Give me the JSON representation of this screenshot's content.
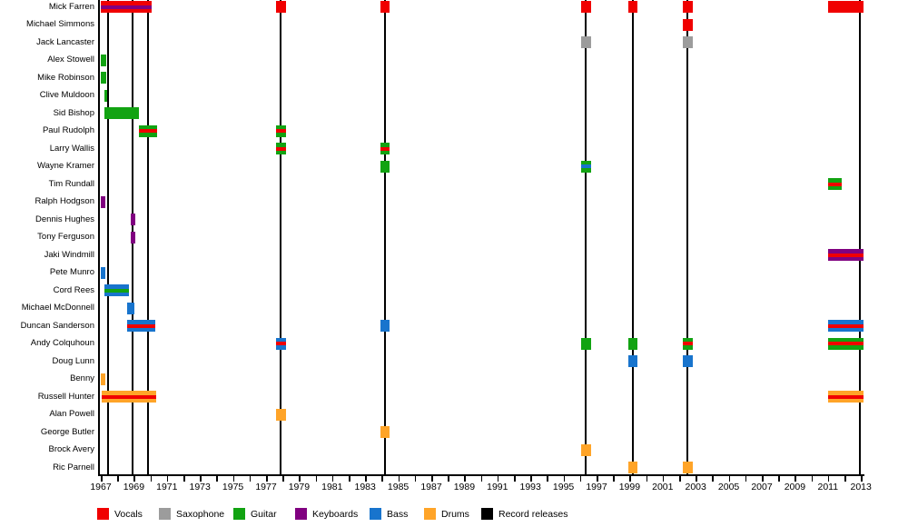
{
  "page": {
    "background": "#ffffff"
  },
  "colors": {
    "vocals": "#f00000",
    "saxophone": "#9c9c9c",
    "guitar": "#12a312",
    "keyboards": "#800080",
    "bass": "#1874cd",
    "drums": "#ffa428",
    "record": "#000000"
  },
  "chart_data": {
    "type": "timeline",
    "title": "",
    "x_axis": {
      "first_year": 1967,
      "last_year": 2013,
      "label_step": 2,
      "minor_tick_step": 1,
      "tick_labels": [
        "1967",
        "1969",
        "1971",
        "1973",
        "1975",
        "1977",
        "1979",
        "1981",
        "1983",
        "1985",
        "1987",
        "1989",
        "1991",
        "1993",
        "1995",
        "1997",
        "1999",
        "2001",
        "2003",
        "2005",
        "2007",
        "2009",
        "2011",
        "2013"
      ]
    },
    "legend": [
      {
        "label": "Vocals",
        "role": "vocals"
      },
      {
        "label": "Saxophone",
        "role": "saxophone"
      },
      {
        "label": "Guitar",
        "role": "guitar"
      },
      {
        "label": "Keyboards",
        "role": "keyboards"
      },
      {
        "label": "Bass",
        "role": "bass"
      },
      {
        "label": "Drums",
        "role": "drums"
      },
      {
        "label": "Record releases",
        "role": "record"
      }
    ],
    "record_release_years": [
      1967.45,
      1968.95,
      1969.85,
      1977.9,
      1984.2,
      1996.35,
      1999.2,
      2002.5,
      2012.95
    ],
    "members": [
      {
        "name": "Mick Farren",
        "bars": [
          {
            "start": 1967.0,
            "end": 1970.1,
            "role": "vocals",
            "stripe": "keyboards"
          },
          {
            "start": 1977.6,
            "end": 1978.2,
            "role": "vocals"
          },
          {
            "start": 1983.9,
            "end": 1984.5,
            "role": "vocals"
          },
          {
            "start": 1996.05,
            "end": 1996.65,
            "role": "vocals"
          },
          {
            "start": 1998.9,
            "end": 1999.5,
            "role": "vocals"
          },
          {
            "start": 2002.2,
            "end": 2002.8,
            "role": "vocals"
          },
          {
            "start": 2011.0,
            "end": 2013.15,
            "role": "vocals"
          }
        ]
      },
      {
        "name": "Michael Simmons",
        "bars": [
          {
            "start": 2002.2,
            "end": 2002.8,
            "role": "vocals"
          }
        ]
      },
      {
        "name": "Jack Lancaster",
        "bars": [
          {
            "start": 1996.05,
            "end": 1996.65,
            "role": "saxophone"
          },
          {
            "start": 2002.2,
            "end": 2002.8,
            "role": "saxophone"
          }
        ]
      },
      {
        "name": "Alex Stowell",
        "bars": [
          {
            "start": 1967.0,
            "end": 1967.35,
            "role": "guitar"
          }
        ]
      },
      {
        "name": "Mike Robinson",
        "bars": [
          {
            "start": 1967.0,
            "end": 1967.35,
            "role": "guitar"
          }
        ]
      },
      {
        "name": "Clive Muldoon",
        "bars": [
          {
            "start": 1967.2,
            "end": 1967.35,
            "role": "guitar"
          }
        ]
      },
      {
        "name": "Sid Bishop",
        "bars": [
          {
            "start": 1967.2,
            "end": 1969.3,
            "role": "guitar"
          }
        ]
      },
      {
        "name": "Paul Rudolph",
        "bars": [
          {
            "start": 1969.3,
            "end": 1970.4,
            "role": "guitar",
            "stripe": "vocals"
          },
          {
            "start": 1977.6,
            "end": 1978.2,
            "role": "guitar",
            "stripe": "vocals"
          }
        ]
      },
      {
        "name": "Larry Wallis",
        "bars": [
          {
            "start": 1977.6,
            "end": 1978.2,
            "role": "guitar",
            "stripe": "vocals"
          },
          {
            "start": 1983.9,
            "end": 1984.5,
            "role": "guitar",
            "stripe": "vocals"
          }
        ]
      },
      {
        "name": "Wayne Kramer",
        "bars": [
          {
            "start": 1983.9,
            "end": 1984.5,
            "role": "guitar"
          },
          {
            "start": 1996.05,
            "end": 1996.65,
            "role": "guitar",
            "stripe": "bass"
          }
        ]
      },
      {
        "name": "Tim Rundall",
        "bars": [
          {
            "start": 2011.0,
            "end": 2011.85,
            "role": "guitar",
            "stripe": "vocals"
          }
        ]
      },
      {
        "name": "Ralph Hodgson",
        "bars": [
          {
            "start": 1967.0,
            "end": 1967.25,
            "role": "keyboards"
          }
        ]
      },
      {
        "name": "Dennis Hughes",
        "bars": [
          {
            "start": 1968.8,
            "end": 1969.1,
            "role": "keyboards"
          }
        ]
      },
      {
        "name": "Tony Ferguson",
        "bars": [
          {
            "start": 1968.8,
            "end": 1969.1,
            "role": "keyboards"
          }
        ]
      },
      {
        "name": "Jaki Windmill",
        "bars": [
          {
            "start": 2011.0,
            "end": 2013.15,
            "role": "keyboards",
            "stripe": "vocals"
          }
        ]
      },
      {
        "name": "Pete Munro",
        "bars": [
          {
            "start": 1967.0,
            "end": 1967.3,
            "role": "bass"
          }
        ]
      },
      {
        "name": "Cord Rees",
        "bars": [
          {
            "start": 1967.2,
            "end": 1968.7,
            "role": "bass",
            "stripe": "guitar"
          }
        ]
      },
      {
        "name": "Michael McDonnell",
        "bars": [
          {
            "start": 1968.6,
            "end": 1969.05,
            "role": "bass"
          }
        ]
      },
      {
        "name": "Duncan Sanderson",
        "bars": [
          {
            "start": 1968.6,
            "end": 1970.3,
            "role": "bass",
            "stripe": "vocals"
          },
          {
            "start": 1983.9,
            "end": 1984.5,
            "role": "bass"
          },
          {
            "start": 2011.0,
            "end": 2013.15,
            "role": "bass",
            "stripe": "vocals"
          }
        ]
      },
      {
        "name": "Andy Colquhoun",
        "bars": [
          {
            "start": 1977.6,
            "end": 1978.2,
            "role": "bass",
            "stripe": "vocals"
          },
          {
            "start": 1996.05,
            "end": 1996.65,
            "role": "guitar"
          },
          {
            "start": 1998.9,
            "end": 1999.5,
            "role": "guitar"
          },
          {
            "start": 2002.2,
            "end": 2002.8,
            "role": "guitar",
            "stripe": "vocals"
          },
          {
            "start": 2011.0,
            "end": 2013.15,
            "role": "guitar",
            "stripe": "vocals"
          }
        ]
      },
      {
        "name": "Doug Lunn",
        "bars": [
          {
            "start": 1998.9,
            "end": 1999.5,
            "role": "bass"
          },
          {
            "start": 2002.2,
            "end": 2002.8,
            "role": "bass"
          }
        ]
      },
      {
        "name": "Benny",
        "bars": [
          {
            "start": 1967.0,
            "end": 1967.25,
            "role": "drums"
          }
        ]
      },
      {
        "name": "Russell Hunter",
        "bars": [
          {
            "start": 1967.05,
            "end": 1970.35,
            "role": "drums",
            "stripe": "vocals"
          },
          {
            "start": 2011.0,
            "end": 2013.15,
            "role": "drums",
            "stripe": "vocals"
          }
        ]
      },
      {
        "name": "Alan Powell",
        "bars": [
          {
            "start": 1977.6,
            "end": 1978.2,
            "role": "drums"
          }
        ]
      },
      {
        "name": "George Butler",
        "bars": [
          {
            "start": 1983.9,
            "end": 1984.5,
            "role": "drums"
          }
        ]
      },
      {
        "name": "Brock Avery",
        "bars": [
          {
            "start": 1996.05,
            "end": 1996.65,
            "role": "drums"
          }
        ]
      },
      {
        "name": "Ric Parnell",
        "bars": [
          {
            "start": 1998.9,
            "end": 1999.5,
            "role": "drums"
          },
          {
            "start": 2002.2,
            "end": 2002.8,
            "role": "drums"
          }
        ]
      }
    ]
  }
}
